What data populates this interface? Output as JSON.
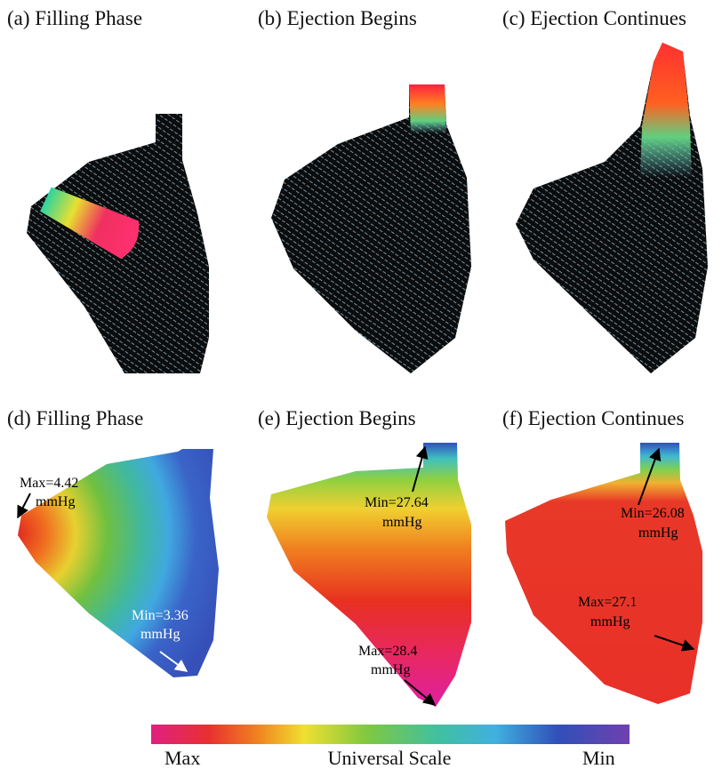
{
  "panels": [
    {
      "title": "(a) Filling Phase"
    },
    {
      "title": "(b) Ejection Begins"
    },
    {
      "title": "(c) Ejection Continues"
    },
    {
      "title": "(d) Filling Phase",
      "annotations": [
        [
          "Max=4.42",
          "mmHg"
        ],
        [
          "Min=3.36",
          "mmHg"
        ]
      ]
    },
    {
      "title": "(e) Ejection Begins",
      "annotations": [
        [
          "Min=27.64",
          "mmHg"
        ],
        [
          "Max=28.4",
          "mmHg"
        ]
      ]
    },
    {
      "title": "(f) Ejection Continues",
      "annotations": [
        [
          "Min=26.08",
          "mmHg"
        ],
        [
          "Max=27.1",
          "mmHg"
        ]
      ]
    }
  ],
  "colorbar": {
    "max_label": "Max",
    "title": "Universal Scale",
    "min_label": "Min"
  }
}
